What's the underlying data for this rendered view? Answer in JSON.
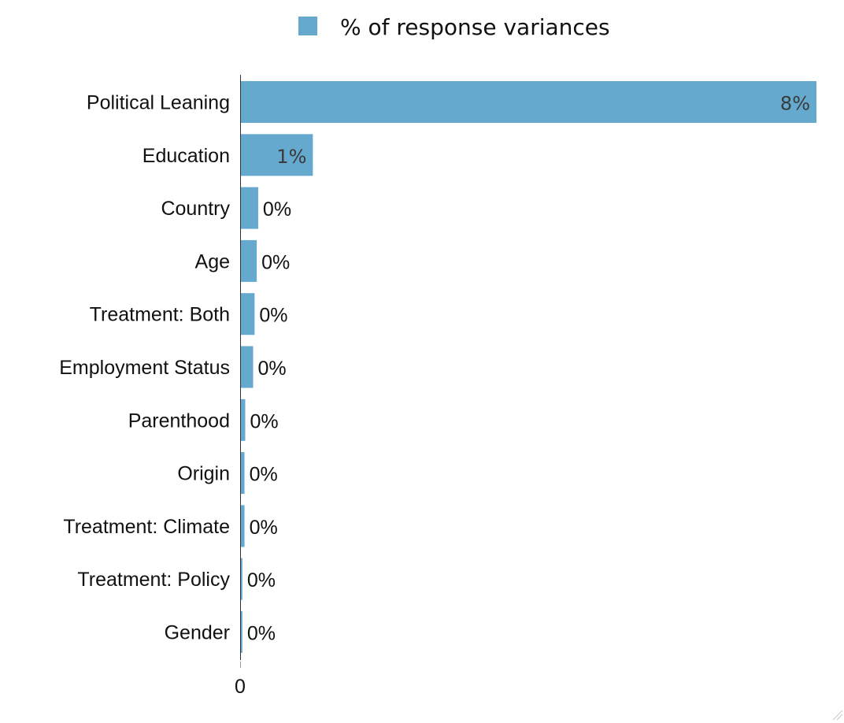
{
  "chart_data": {
    "type": "bar",
    "orientation": "horizontal",
    "legend": {
      "label": "% of response variances",
      "position": "top-center"
    },
    "categories": [
      "Political Leaning",
      "Education",
      "Country",
      "Age",
      "Treatment: Both",
      "Employment Status",
      "Parenthood",
      "Origin",
      "Treatment: Climate",
      "Treatment: Policy",
      "Gender"
    ],
    "values": [
      8.0,
      1.0,
      0.24,
      0.22,
      0.19,
      0.17,
      0.06,
      0.05,
      0.05,
      0.02,
      0.02
    ],
    "value_labels": [
      "8%",
      "1%",
      "0%",
      "0%",
      "0%",
      "0%",
      "0%",
      "0%",
      "0%",
      "0%",
      "0%"
    ],
    "x_ticks": [
      "0"
    ],
    "xlim": [
      0,
      8.0
    ],
    "grid": false,
    "colors": {
      "bar": "#66a9cf"
    }
  }
}
